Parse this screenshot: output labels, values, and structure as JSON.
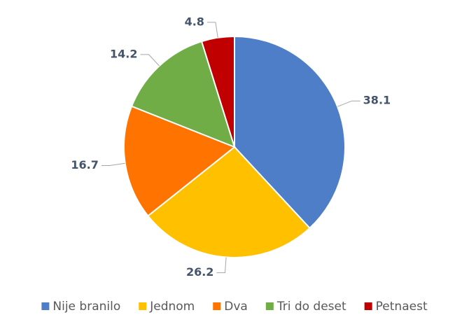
{
  "chart_data": {
    "type": "pie",
    "categories": [
      "Nije branilo",
      "Jednom",
      "Dva",
      "Tri do deset",
      "Petnaest"
    ],
    "values": [
      38.1,
      26.2,
      16.7,
      14.2,
      4.8
    ],
    "colors": [
      "#4e7ec8",
      "#ffc000",
      "#ff7300",
      "#70ad47",
      "#c00000"
    ],
    "legend": "bottom"
  }
}
